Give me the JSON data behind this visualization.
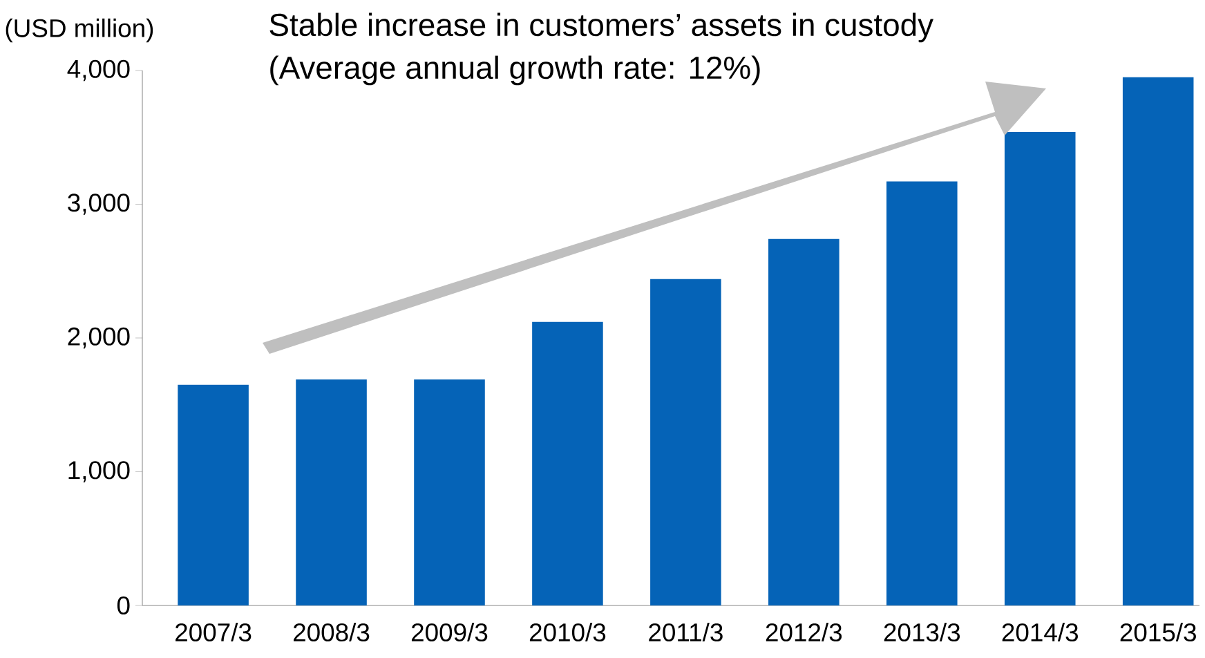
{
  "chart_data": {
    "type": "bar",
    "title": "Stable increase in customers’ assets in custody",
    "subtitle": "(Average annual growth rate: 12%)",
    "ylabel": "(USD million)",
    "categories": [
      "2007/3",
      "2008/3",
      "2009/3",
      "2010/3",
      "2011/3",
      "2012/3",
      "2013/3",
      "2014/3",
      "2015/3"
    ],
    "values": [
      1650,
      1690,
      1690,
      2120,
      2440,
      2740,
      3170,
      3540,
      3950
    ],
    "color": "#0563b7",
    "ylim": [
      0,
      4000
    ],
    "yticks": [
      0,
      {
        "value": 1000,
        "label": "1,000"
      },
      {
        "value": 2000,
        "label": "2,000"
      },
      {
        "value": 3000,
        "label": "3,000"
      },
      {
        "value": 4000,
        "label": "4,000"
      }
    ],
    "grid": false
  }
}
